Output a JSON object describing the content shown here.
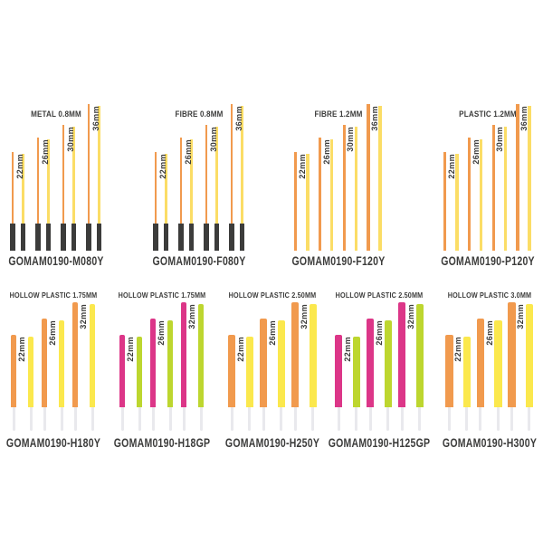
{
  "page": {
    "background": "#ffffff"
  },
  "palette": {
    "orange": "#F19A4E",
    "yellow": "#FBDD66",
    "yellow_bright": "#FBE84D",
    "pink": "#DC3688",
    "green": "#BDD62F",
    "dark": "#3C3C3B",
    "tail": "#E9E9ED",
    "text": "#3C3C3B"
  },
  "groups_top": [
    {
      "title": "METAL 0.8MM",
      "code": "GOMAM0190-M080Y",
      "sizes": [
        "22mm",
        "26mm",
        "30mm",
        "36mm"
      ],
      "colors": [
        "orange",
        "yellow"
      ],
      "dark_base": true
    },
    {
      "title": "FIBRE 0.8MM",
      "code": "GOMAM0190-F080Y",
      "sizes": [
        "22mm",
        "26mm",
        "30mm",
        "36mm"
      ],
      "colors": [
        "orange",
        "yellow"
      ],
      "dark_base": true
    },
    {
      "title": "FIBRE 1.2MM",
      "code": "GOMAM0190-F120Y",
      "sizes": [
        "22mm",
        "26mm",
        "30mm",
        "36mm"
      ],
      "colors": [
        "orange",
        "yellow"
      ],
      "dark_base": false
    },
    {
      "title": "PLASTIC 1.2MM",
      "code": "GOMAM0190-P120Y",
      "sizes": [
        "22mm",
        "26mm",
        "30mm",
        "36mm"
      ],
      "colors": [
        "orange",
        "yellow"
      ],
      "dark_base": false
    }
  ],
  "groups_bottom": [
    {
      "title": "HOLLOW PLASTIC 1.75MM",
      "code": "GOMAM0190-H180Y",
      "sizes": [
        "22mm",
        "26mm",
        "32mm"
      ],
      "colors": [
        "orange",
        "yellow_bright"
      ],
      "hollow_tail": true
    },
    {
      "title": "HOLLOW PLASTIC 1.75MM",
      "code": "GOMAM0190-H18GP",
      "sizes": [
        "22mm",
        "26mm",
        "32mm"
      ],
      "colors": [
        "pink",
        "green"
      ],
      "hollow_tail": true
    },
    {
      "title": "HOLLOW PLASTIC 2.50MM",
      "code": "GOMAM0190-H250Y",
      "sizes": [
        "22mm",
        "26mm",
        "32mm"
      ],
      "colors": [
        "orange",
        "yellow_bright"
      ],
      "hollow_tail": true
    },
    {
      "title": "HOLLOW PLASTIC 2.50MM",
      "code": "GOMAM0190-H125GP",
      "sizes": [
        "22mm",
        "26mm",
        "32mm"
      ],
      "colors": [
        "pink",
        "green"
      ],
      "hollow_tail": true
    },
    {
      "title": "HOLLOW PLASTIC 3.0MM",
      "code": "GOMAM0190-H300Y",
      "sizes": [
        "22mm",
        "26mm",
        "32mm"
      ],
      "colors": [
        "orange",
        "yellow_bright"
      ],
      "hollow_tail": true
    }
  ]
}
